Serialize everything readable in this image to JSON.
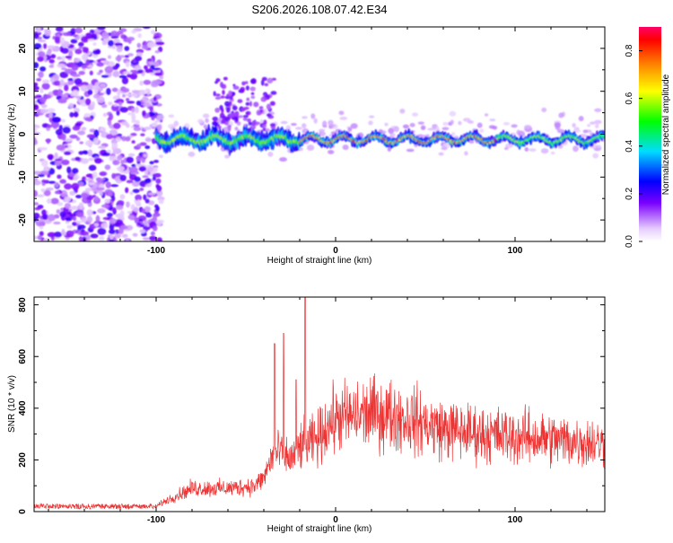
{
  "title": "S206.2026.108.07.42.E34",
  "chart_data": [
    {
      "type": "heatmap",
      "panel": "spectrogram",
      "xlabel": "Height of straight line (km)",
      "ylabel": "Frequency (Hz)",
      "xlim": [
        -168,
        150
      ],
      "ylim": [
        -25,
        25
      ],
      "xticks": [
        -100,
        0,
        100
      ],
      "yticks": [
        -20,
        -10,
        0,
        10,
        20
      ],
      "ridge_frequency_hz": 0,
      "noise_region_x": [
        -168,
        -100
      ],
      "signal_onset_x": -100,
      "colorbar": {
        "label": "Normalized spectral amplitude",
        "range": [
          0.0,
          0.9
        ],
        "ticks": [
          0.0,
          0.2,
          0.4,
          0.6,
          0.8
        ]
      }
    },
    {
      "type": "line",
      "panel": "snr",
      "xlabel": "Height of straight line (km)",
      "ylabel": "SNR (10 * v/v)",
      "xlim": [
        -168,
        150
      ],
      "ylim": [
        0,
        830
      ],
      "xticks": [
        -100,
        0,
        100
      ],
      "yticks": [
        0,
        200,
        400,
        600,
        800
      ],
      "color": "#ee3333",
      "envelope": {
        "x": [
          -168,
          -100,
          -95,
          -80,
          -60,
          -45,
          -40,
          -35,
          -30,
          -25,
          -20,
          -15,
          -10,
          -5,
          0,
          10,
          20,
          30,
          40,
          50,
          60,
          80,
          100,
          120,
          140,
          150
        ],
        "y": [
          20,
          20,
          40,
          90,
          90,
          100,
          130,
          220,
          230,
          200,
          250,
          260,
          280,
          330,
          360,
          370,
          380,
          375,
          360,
          340,
          320,
          300,
          290,
          280,
          270,
          260
        ]
      },
      "spikes": [
        {
          "x": -34,
          "y": 650
        },
        {
          "x": -29,
          "y": 690
        },
        {
          "x": -17,
          "y": 830
        },
        {
          "x": -22,
          "y": 510
        }
      ]
    }
  ]
}
